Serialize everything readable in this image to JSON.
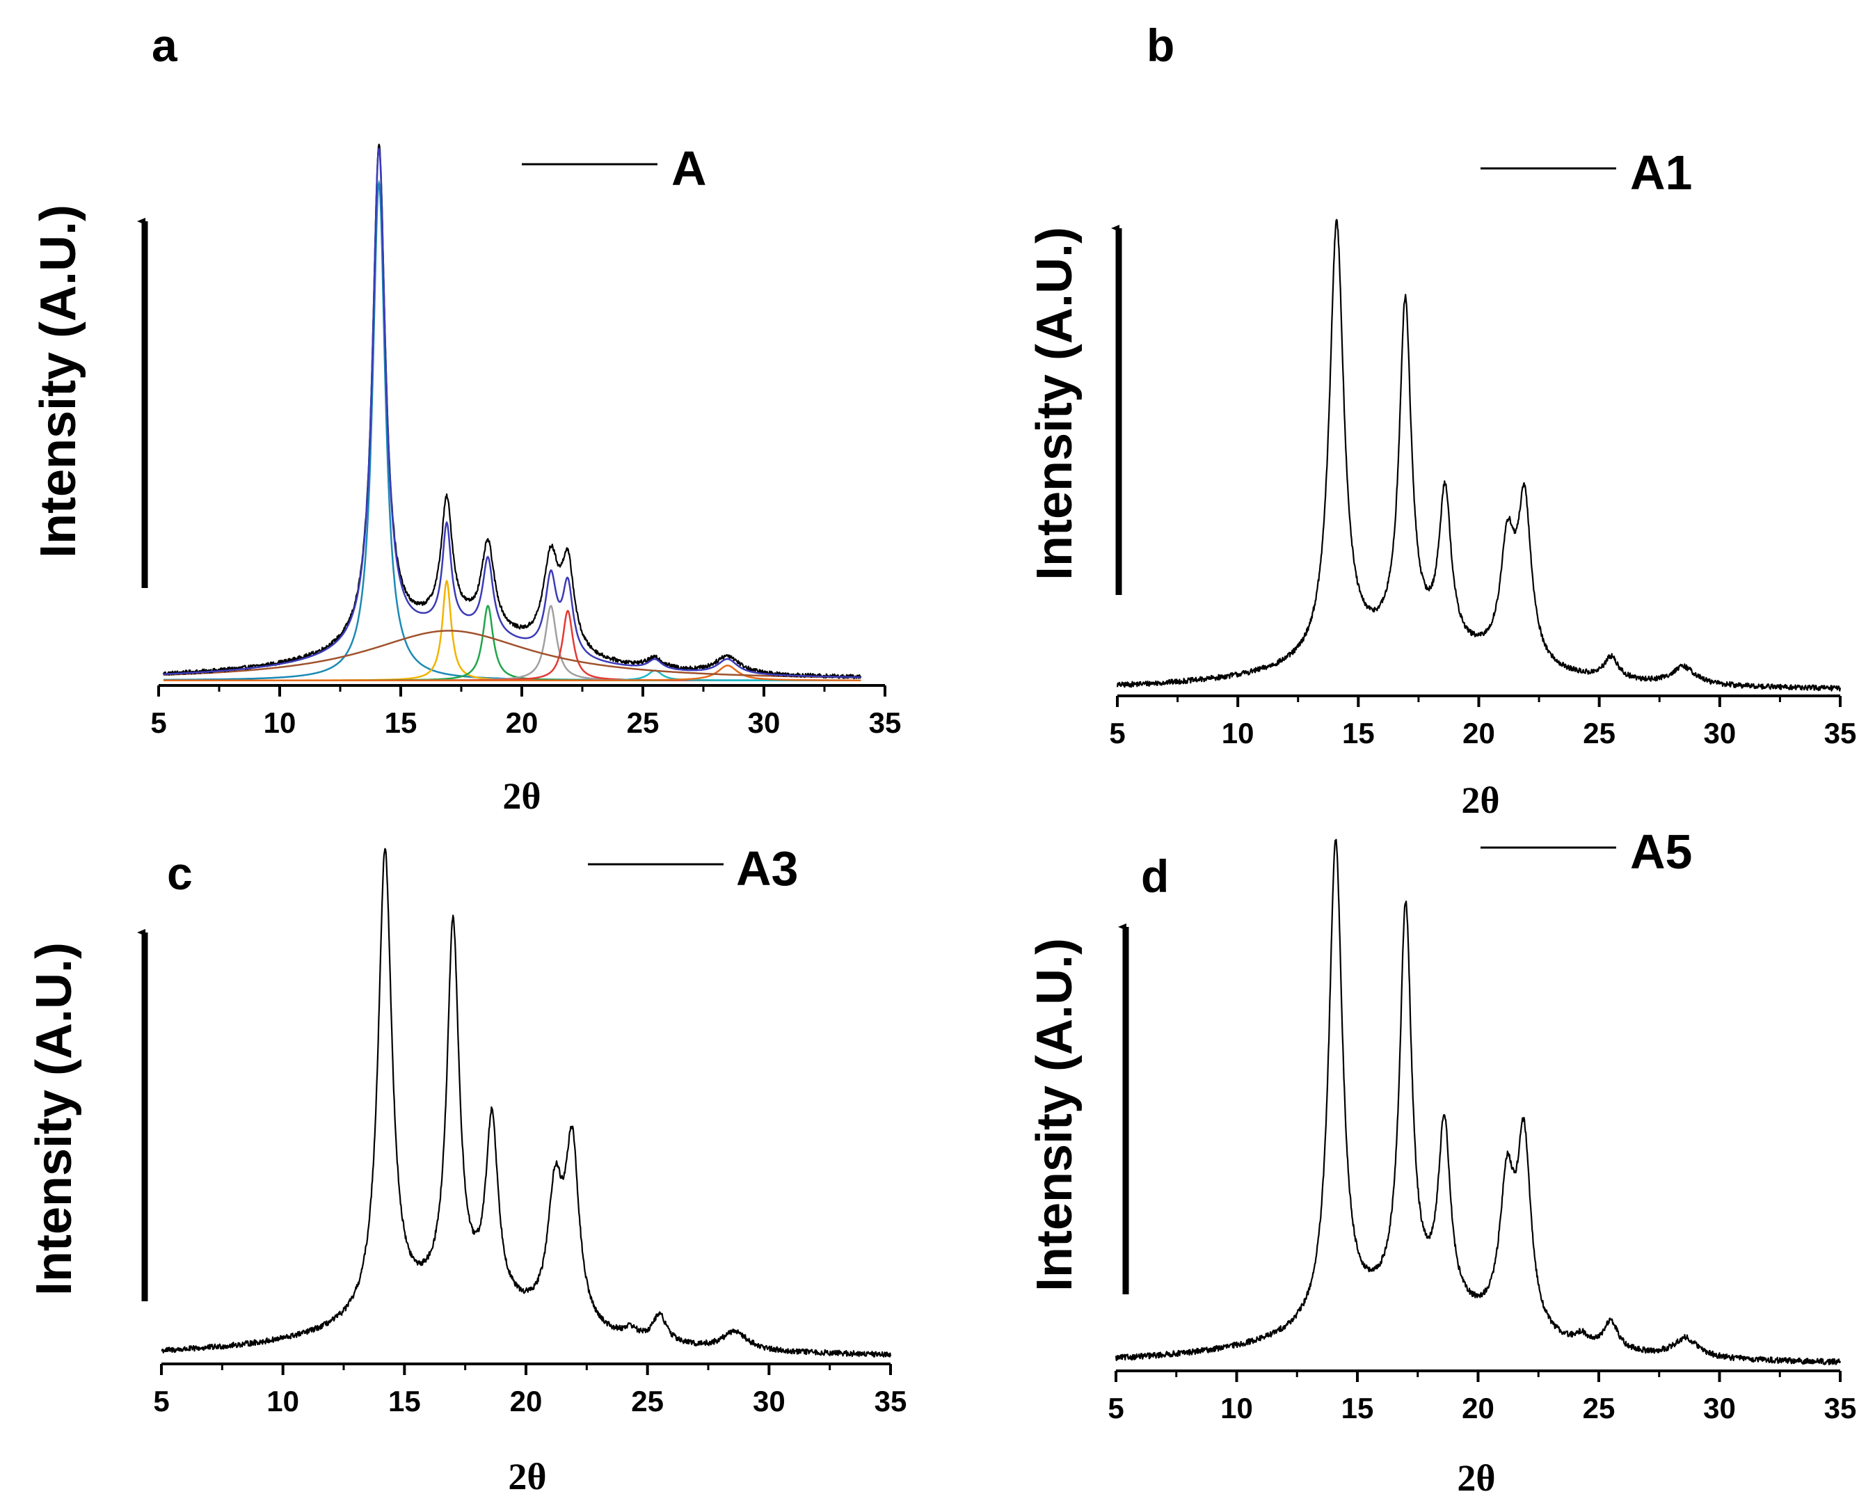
{
  "figure": {
    "panel_letters": [
      "a",
      "b",
      "c",
      "d"
    ]
  },
  "chart_data": [
    {
      "type": "line",
      "panel": "a",
      "legend": "A",
      "xlabel": "2θ",
      "ylabel": "Intensity (A.U.)",
      "xlim": [
        5,
        35
      ],
      "xticks": [
        5,
        10,
        15,
        20,
        25,
        30,
        35
      ],
      "ylim": [
        0,
        1
      ],
      "data_range": [
        5.2,
        34.0
      ],
      "baseline": 0.01,
      "noise": 0.004,
      "peaks": [
        {
          "x": 14.1,
          "h": 1.0,
          "w": 0.32
        },
        {
          "x": 16.9,
          "h": 0.24,
          "w": 0.28
        },
        {
          "x": 18.6,
          "h": 0.17,
          "w": 0.32
        },
        {
          "x": 21.2,
          "h": 0.18,
          "w": 0.38
        },
        {
          "x": 21.9,
          "h": 0.17,
          "w": 0.32
        },
        {
          "x": 25.5,
          "h": 0.02,
          "w": 0.4
        },
        {
          "x": 28.5,
          "h": 0.035,
          "w": 0.6
        },
        {
          "x": 17.0,
          "h": 0.11,
          "w": 4.2
        }
      ],
      "fit_components": [
        {
          "x": 14.1,
          "h": 1.0,
          "w": 0.32,
          "color": "#1a8ab5"
        },
        {
          "x": 16.9,
          "h": 0.2,
          "w": 0.22,
          "color": "#f2b400"
        },
        {
          "x": 18.6,
          "h": 0.15,
          "w": 0.26,
          "color": "#1fa64a"
        },
        {
          "x": 21.2,
          "h": 0.15,
          "w": 0.28,
          "color": "#a0a0a0"
        },
        {
          "x": 21.9,
          "h": 0.14,
          "w": 0.26,
          "color": "#e53935"
        },
        {
          "x": 25.5,
          "h": 0.02,
          "w": 0.35,
          "color": "#1fb8c4"
        },
        {
          "x": 28.5,
          "h": 0.03,
          "w": 0.5,
          "color": "#e66a1a"
        },
        {
          "x": 17.0,
          "h": 0.1,
          "w": 4.2,
          "color": "#a0522d"
        }
      ],
      "fit_envelope_color": "#3b3bb8"
    },
    {
      "type": "line",
      "panel": "b",
      "legend": "A1",
      "xlabel": "2θ",
      "ylabel": "Intensity (A.U.)",
      "xlim": [
        5,
        35
      ],
      "xticks": [
        5,
        10,
        15,
        20,
        25,
        30,
        35
      ],
      "ylim": [
        0,
        1
      ],
      "data_range": [
        5.0,
        35.0
      ],
      "baseline": 0.01,
      "noise": 0.006,
      "peaks": [
        {
          "x": 14.1,
          "h": 0.99,
          "w": 0.36
        },
        {
          "x": 16.95,
          "h": 0.77,
          "w": 0.3
        },
        {
          "x": 18.6,
          "h": 0.35,
          "w": 0.3
        },
        {
          "x": 21.2,
          "h": 0.26,
          "w": 0.36
        },
        {
          "x": 21.9,
          "h": 0.36,
          "w": 0.34
        },
        {
          "x": 25.5,
          "h": 0.05,
          "w": 0.35
        },
        {
          "x": 28.5,
          "h": 0.04,
          "w": 0.6
        },
        {
          "x": 17.0,
          "h": 0.1,
          "w": 4.5
        }
      ]
    },
    {
      "type": "line",
      "panel": "c",
      "legend": "A3",
      "xlabel": "2θ",
      "ylabel": "Intensity (A.U.)",
      "xlim": [
        5,
        35
      ],
      "xticks": [
        5,
        10,
        15,
        20,
        25,
        30,
        35
      ],
      "ylim": [
        0,
        1
      ],
      "data_range": [
        5.0,
        35.0
      ],
      "baseline": 0.012,
      "noise": 0.006,
      "peaks": [
        {
          "x": 14.2,
          "h": 1.0,
          "w": 0.34
        },
        {
          "x": 17.0,
          "h": 0.8,
          "w": 0.3
        },
        {
          "x": 18.6,
          "h": 0.39,
          "w": 0.3
        },
        {
          "x": 21.2,
          "h": 0.27,
          "w": 0.36
        },
        {
          "x": 21.9,
          "h": 0.38,
          "w": 0.34
        },
        {
          "x": 24.3,
          "h": 0.02,
          "w": 0.3
        },
        {
          "x": 25.5,
          "h": 0.06,
          "w": 0.35
        },
        {
          "x": 28.6,
          "h": 0.04,
          "w": 0.6
        },
        {
          "x": 17.0,
          "h": 0.12,
          "w": 4.5
        }
      ]
    },
    {
      "type": "line",
      "panel": "d",
      "legend": "A5",
      "xlabel": "2θ",
      "ylabel": "Intensity (A.U.)",
      "xlim": [
        5,
        35
      ],
      "xticks": [
        5,
        10,
        15,
        20,
        25,
        30,
        35
      ],
      "ylim": [
        0,
        1
      ],
      "data_range": [
        5.0,
        35.0
      ],
      "baseline": 0.01,
      "noise": 0.006,
      "peaks": [
        {
          "x": 14.1,
          "h": 1.0,
          "w": 0.34
        },
        {
          "x": 17.0,
          "h": 0.82,
          "w": 0.3
        },
        {
          "x": 18.6,
          "h": 0.38,
          "w": 0.3
        },
        {
          "x": 21.2,
          "h": 0.29,
          "w": 0.36
        },
        {
          "x": 21.9,
          "h": 0.39,
          "w": 0.34
        },
        {
          "x": 24.3,
          "h": 0.02,
          "w": 0.3
        },
        {
          "x": 25.5,
          "h": 0.06,
          "w": 0.35
        },
        {
          "x": 28.6,
          "h": 0.04,
          "w": 0.6
        },
        {
          "x": 17.0,
          "h": 0.12,
          "w": 4.5
        }
      ]
    }
  ]
}
